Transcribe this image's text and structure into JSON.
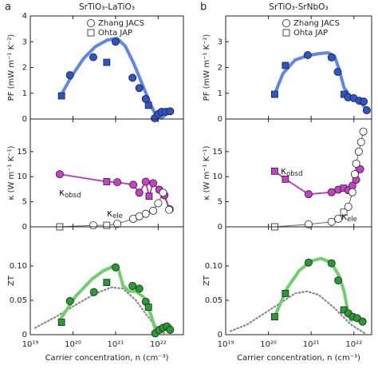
{
  "chart_data": [
    {
      "type": "scatter",
      "panel": "a",
      "title": "SrTiO₃-LaTiO₃",
      "ylabel": "PF (mW m⁻¹ K⁻²)",
      "xscale": "log",
      "xlim": [
        1e+19,
        3.9e+22
      ],
      "xticks": [
        1e+19,
        1e+20,
        1e+21,
        1e+22
      ],
      "ylim": [
        0,
        4
      ],
      "yticks": [
        0,
        1,
        2,
        3,
        4
      ],
      "legend": [
        {
          "name": "Zhang JACS",
          "marker": "circle"
        },
        {
          "name": "Ohta JAP",
          "marker": "square"
        }
      ],
      "series": [
        {
          "line_color": "#5f87e8",
          "line_style": "thick",
          "x": [
            4.9e+19,
            9.4e+19,
            1.8e+20,
            3.4e+20,
            6.5e+20,
            1.1e+21,
            1.7e+21,
            2.7e+21,
            4.2e+21,
            6.3e+21,
            8.9e+21,
            1.2e+22,
            1.6e+22,
            2e+22
          ],
          "values": [
            0.84,
            1.67,
            2.36,
            2.82,
            3.07,
            3.13,
            2.82,
            2.14,
            1.36,
            0.65,
            0.12,
            0.03,
            0.22,
            0.28
          ]
        },
        {
          "color": "#2f54c8",
          "x": [
            5.4e+19,
            8.5e+19,
            3e+20,
            6.2e+20,
            1e+21,
            2.5e+21,
            3.6e+21,
            5.1e+21,
            5.9e+21,
            8.3e+21,
            1e+22,
            1.2e+22,
            1.5e+22,
            1.9e+22
          ],
          "values": [
            0.9,
            1.7,
            2.4,
            2.2,
            3.0,
            1.6,
            1.2,
            0.78,
            0.53,
            0.03,
            0.19,
            0.28,
            0.28,
            0.3
          ],
          "markers": [
            "square",
            "circle",
            "circle",
            "square",
            "circle",
            "circle",
            "circle",
            "circle",
            "square",
            "circle",
            "circle",
            "circle",
            "circle",
            "circle"
          ]
        }
      ]
    },
    {
      "type": "scatter",
      "ylabel": "κ (W m⁻¹ K⁻¹)",
      "xscale": "log",
      "xlim": [
        1e+19,
        3.9e+22
      ],
      "xticks": [
        1e+19,
        1e+20,
        1e+21,
        1e+22
      ],
      "ylim": [
        0,
        21.5
      ],
      "yticks": [
        0,
        5,
        10,
        15
      ],
      "annotations": [
        {
          "symbol": "κ",
          "sub": "obsd"
        },
        {
          "symbol": "κ",
          "sub": "ele"
        }
      ],
      "series": [
        {
          "color": "#c83fc8",
          "line_color": "#b83ab8",
          "line_style": "thin",
          "x": [
            4.9e+19,
            6.2e+20,
            1.1e+21,
            2.6e+21,
            3.6e+21,
            5.1e+21,
            6.1e+21,
            7.6e+21,
            1.06e+22,
            1.4e+22,
            1.86e+22
          ],
          "values": [
            10.5,
            9.0,
            8.9,
            8.4,
            6.8,
            9.0,
            6.1,
            8.7,
            7.4,
            6.3,
            3.5
          ],
          "markers": [
            "circle",
            "square",
            "circle",
            "circle",
            "circle",
            "circle",
            "square",
            "circle",
            "circle",
            "circle",
            "circle"
          ]
        },
        {
          "color": "#ffffff",
          "line_color": "#666666",
          "line_style": "hair",
          "x": [
            4.9e+19,
            3e+20,
            6.2e+20,
            1.1e+21,
            2.6e+21,
            3.6e+21,
            5.1e+21,
            7.6e+21,
            1e+22,
            1.3e+22,
            1.8e+22
          ],
          "values": [
            0,
            0.3,
            0.3,
            0.6,
            1.6,
            2.1,
            2.6,
            3.2,
            4.7,
            6.8,
            3.4
          ],
          "markers": [
            "square",
            "circle",
            "square",
            "circle",
            "circle",
            "circle",
            "circle",
            "circle",
            "circle",
            "circle",
            "circle"
          ]
        }
      ]
    },
    {
      "type": "scatter",
      "ylabel": "ZT",
      "xlabel": "Carrier concentration, n (cm⁻³)",
      "xscale": "log",
      "xlim": [
        1e+19,
        3.9e+22
      ],
      "xticks": [
        {
          "value": 1e+19,
          "label": "10¹⁹"
        },
        {
          "value": 1e+20,
          "label": "10²⁰"
        },
        {
          "value": 1e+21,
          "label": "10²¹"
        },
        {
          "value": 1e+22,
          "label": "10²²"
        }
      ],
      "ylim": [
        0,
        0.157
      ],
      "yticks": [
        0,
        0.05,
        {
          "value": 0.1,
          "label": "0.10"
        }
      ],
      "series": [
        {
          "line_color": "#8a8a8a",
          "line_style": "dotted",
          "x": [
            1.3e+19,
            4e+19,
            1.2e+20,
            3.4e+20,
            8.1e+20,
            1.5e+21,
            3e+21,
            5.6e+21,
            1.06e+22,
            1.6e+22
          ],
          "values": [
            0.01,
            0.026,
            0.044,
            0.06,
            0.069,
            0.067,
            0.05,
            0.027,
            0.006,
            0
          ]
        },
        {
          "line_color": "#6fcf6f",
          "line_style": "thick",
          "x": [
            4.9e+19,
            1.2e+20,
            2.8e+20,
            5.2e+20,
            1e+21,
            1.2e+21,
            1.5e+21,
            2.1e+21,
            3e+21,
            4.5e+21,
            6.9e+21,
            9.3e+21,
            1.3e+22,
            2e+22
          ],
          "values": [
            0.021,
            0.057,
            0.081,
            0.093,
            0.101,
            0.093,
            0.071,
            0.063,
            0.063,
            0.055,
            0.027,
            0,
            0.007,
            0.012
          ]
        },
        {
          "color": "#2a9a35",
          "x": [
            5.4e+19,
            8.5e+19,
            3.1e+20,
            6.2e+20,
            1e+21,
            2.5e+21,
            3.6e+21,
            5.1e+21,
            5.9e+21,
            8.5e+21,
            1.06e+22,
            1.3e+22,
            1.6e+22,
            1.9e+22
          ],
          "values": [
            0.018,
            0.049,
            0.062,
            0.076,
            0.098,
            0.071,
            0.067,
            0.048,
            0.04,
            0.002,
            0.007,
            0.01,
            0.012,
            0.007
          ],
          "markers": [
            "square",
            "circle",
            "circle",
            "square",
            "circle",
            "circle",
            "circle",
            "circle",
            "square",
            "circle",
            "circle",
            "circle",
            "circle",
            "circle"
          ]
        }
      ]
    },
    {
      "type": "scatter",
      "panel": "b",
      "title": "SrTiO₃-SrNbO₃",
      "ylabel": "PF (mW m⁻¹ K⁻²)",
      "xscale": "log",
      "xlim": [
        1e+19,
        2.6e+22
      ],
      "xticks": [
        1e+19,
        1e+20,
        1e+21,
        1e+22
      ],
      "ylim": [
        0,
        4
      ],
      "yticks": [
        0,
        1,
        2,
        3
      ],
      "legend": [
        {
          "name": "Zhang JACS",
          "marker": "circle"
        },
        {
          "name": "Ohta JAP",
          "marker": "square"
        }
      ],
      "series": [
        {
          "line_color": "#5f87e8",
          "line_style": "thick",
          "x": [
            1.4e+20,
            2.2e+20,
            4.2e+20,
            7.9e+20,
            1.5e+21,
            2.5e+21,
            3.5e+21,
            4.4e+21,
            5.9e+21,
            9.2e+21,
            1.4e+22,
            2.1e+22
          ],
          "values": [
            0.96,
            1.77,
            2.29,
            2.45,
            2.54,
            2.57,
            2.45,
            1.98,
            1.21,
            0.78,
            0.65,
            0.34
          ]
        },
        {
          "color": "#2f54c8",
          "x": [
            1.4e+20,
            2.5e+20,
            8.3e+20,
            3e+21,
            4.2e+21,
            5.9e+21,
            7.3e+21,
            9.9e+21,
            1.34e+22,
            1.7e+22,
            2e+22
          ],
          "values": [
            0.96,
            2.08,
            2.48,
            2.39,
            1.83,
            0.96,
            0.84,
            0.81,
            0.71,
            0.68,
            0.34
          ],
          "markers": [
            "square",
            "square",
            "circle",
            "circle",
            "circle",
            "square",
            "circle",
            "circle",
            "circle",
            "circle",
            "circle"
          ]
        }
      ]
    },
    {
      "type": "scatter",
      "ylabel": "κ (W m⁻¹ K⁻¹)",
      "xscale": "log",
      "xlim": [
        1e+19,
        2.6e+22
      ],
      "xticks": [
        1e+19,
        1e+20,
        1e+21,
        1e+22
      ],
      "ylim": [
        0,
        21.5
      ],
      "yticks": [
        0,
        5,
        10,
        15
      ],
      "annotations": [
        {
          "symbol": "κ",
          "sub": "obsd"
        },
        {
          "symbol": "κ",
          "sub": "ele"
        }
      ],
      "series": [
        {
          "color": "#c83fc8",
          "line_color": "#b83ab8",
          "line_style": "thin",
          "x": [
            1.4e+20,
            2.5e+20,
            8.7e+20,
            3e+21,
            4.3e+21,
            5.8e+21,
            7.4e+21,
            9.2e+21,
            1.13e+22,
            1.4e+22
          ],
          "values": [
            11.1,
            9.5,
            6.5,
            6.9,
            7.4,
            7.7,
            7.3,
            8.2,
            9.4,
            11.5
          ],
          "markers": [
            "square",
            "square",
            "circle",
            "circle",
            "circle",
            "square",
            "circle",
            "circle",
            "circle",
            "circle"
          ]
        },
        {
          "color": "#ffffff",
          "line_color": "#666666",
          "line_style": "hair",
          "x": [
            1.4e+20,
            8.7e+20,
            3e+21,
            4.3e+21,
            5.8e+21,
            7.4e+21,
            9.2e+21,
            1.05e+22,
            1.13e+22,
            1.3e+22,
            1.47e+22,
            1.66e+22
          ],
          "values": [
            0,
            0.5,
            1.0,
            1.6,
            2.9,
            4.0,
            6.9,
            10.5,
            12.6,
            15.0,
            16.9,
            19.0
          ],
          "markers": [
            "square",
            "circle",
            "circle",
            "circle",
            "square",
            "circle",
            "circle",
            "circle",
            "circle",
            "circle",
            "circle",
            "circle"
          ]
        }
      ]
    },
    {
      "type": "scatter",
      "ylabel": "ZT",
      "xlabel": "Carrier concentration, n (cm⁻³)",
      "xscale": "log",
      "xlim": [
        1e+19,
        2.6e+22
      ],
      "xticks": [
        {
          "value": 1e+19,
          "label": "10¹⁹"
        },
        {
          "value": 1e+20,
          "label": "10²⁰"
        },
        {
          "value": 1e+21,
          "label": "10²¹"
        },
        {
          "value": 1e+22,
          "label": "10²²"
        }
      ],
      "ylim": [
        0,
        0.157
      ],
      "yticks": [
        0,
        0.05,
        {
          "value": 0.1,
          "label": "0.10"
        }
      ],
      "series": [
        {
          "line_color": "#8a8a8a",
          "line_style": "dotted",
          "x": [
            1.3e+19,
            3.2e+19,
            1.2e+20,
            4.2e+20,
            7.9e+20,
            1.5e+21,
            3.5e+21,
            8.4e+21,
            1.8e+22
          ],
          "values": [
            0.005,
            0.015,
            0.038,
            0.06,
            0.063,
            0.058,
            0.039,
            0.015,
            0.002
          ]
        },
        {
          "line_color": "#6fcf6f",
          "line_style": "thick",
          "x": [
            1.4e+20,
            2.7e+20,
            5.2e+20,
            9.8e+20,
            1.7e+21,
            2.9e+21,
            4.4e+21,
            5.9e+21,
            7.1e+21,
            8.4e+21
          ],
          "values": [
            0.026,
            0.067,
            0.093,
            0.107,
            0.111,
            0.105,
            0.087,
            0.063,
            0.036,
            0.021
          ]
        },
        {
          "color": "#2a9a35",
          "x": [
            1.4e+20,
            2.5e+20,
            8.7e+20,
            3e+21,
            4.3e+21,
            5.8e+21,
            7.4e+21,
            9.5e+21,
            1.2e+22,
            1.6e+22
          ],
          "values": [
            0.026,
            0.06,
            0.105,
            0.104,
            0.079,
            0.036,
            0.031,
            0.026,
            0.024,
            0.019
          ],
          "markers": [
            "square",
            "square",
            "circle",
            "circle",
            "circle",
            "square",
            "circle",
            "circle",
            "circle",
            "circle"
          ]
        }
      ]
    }
  ]
}
